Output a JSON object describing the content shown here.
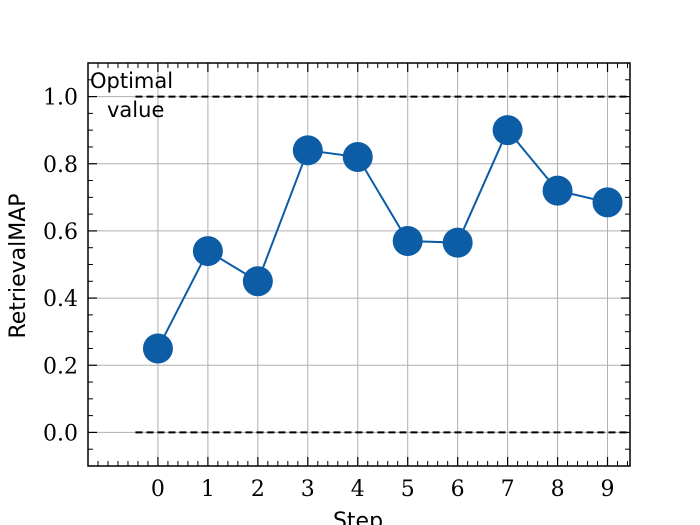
{
  "chart_data": {
    "type": "line",
    "title": "",
    "xlabel": "Step",
    "ylabel": "RetrievalMAP",
    "x": [
      0,
      1,
      2,
      3,
      4,
      5,
      6,
      7,
      8,
      9
    ],
    "series": [
      {
        "values": [
          0.25,
          0.54,
          0.45,
          0.84,
          0.82,
          0.57,
          0.565,
          0.9,
          0.72,
          0.685
        ],
        "color": "#0c5da5",
        "marker": "circle"
      }
    ],
    "xlim": [
      -1.4,
      9.45
    ],
    "ylim": [
      -0.1,
      1.1
    ],
    "xticks": [
      "0",
      "1",
      "2",
      "3",
      "4",
      "5",
      "6",
      "7",
      "8",
      "9"
    ],
    "yticks": [
      "0.0",
      "0.2",
      "0.4",
      "0.6",
      "0.8",
      "1.0"
    ],
    "grid": true,
    "reference_lines": [
      {
        "y": 1.0,
        "style": "dashed",
        "color": "#000000"
      },
      {
        "y": 0.0,
        "style": "dashed",
        "color": "#000000"
      }
    ],
    "annotations": [
      {
        "text_line1": "Optimal",
        "text_line2": "value"
      }
    ]
  }
}
